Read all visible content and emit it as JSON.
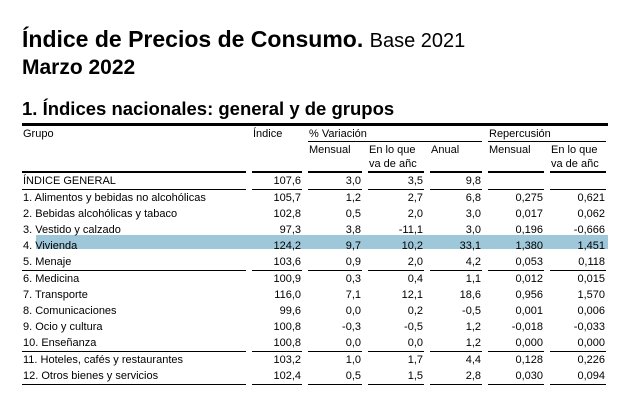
{
  "title": "Índice de Precios de Consumo.",
  "base": "Base 2021",
  "period": "Marzo 2022",
  "section": "1. Índices nacionales: general y de grupos",
  "headers": {
    "grupo": "Grupo",
    "indice": "Índice",
    "variacion": "% Variación",
    "repercusion": "Repercusión",
    "mensual": "Mensual",
    "en_lo_que": "En lo que",
    "va_de": "va de añc",
    "anual": "Anual",
    "rep_mensual": "Mensual",
    "rep_en_lo_que": "En lo que",
    "rep_va_de": "va de añc"
  },
  "highlight_color": "#9ec8da",
  "rows": [
    [
      "ÍNDICE GENERAL",
      "107,6",
      "3,0",
      "3,5",
      "9,8",
      "",
      ""
    ],
    [
      "1. Alimentos y bebidas no alcohólicas",
      "105,7",
      "1,2",
      "2,7",
      "6,8",
      "0,275",
      "0,621"
    ],
    [
      "2. Bebidas alcohólicas y tabaco",
      "102,8",
      "0,5",
      "2,0",
      "3,0",
      "0,017",
      "0,062"
    ],
    [
      "3. Vestido y calzado",
      "97,3",
      "3,8",
      "-11,1",
      "3,0",
      "0,196",
      "-0,666"
    ],
    [
      "4. Vivienda",
      "124,2",
      "9,7",
      "10,2",
      "33,1",
      "1,380",
      "1,451"
    ],
    [
      "5. Menaje",
      "103,6",
      "0,9",
      "2,0",
      "4,2",
      "0,053",
      "0,118"
    ],
    [
      "6. Medicina",
      "100,9",
      "0,3",
      "0,4",
      "1,1",
      "0,012",
      "0,015"
    ],
    [
      "7. Transporte",
      "116,0",
      "7,1",
      "12,1",
      "18,6",
      "0,956",
      "1,570"
    ],
    [
      "8. Comunicaciones",
      "99,6",
      "0,0",
      "0,2",
      "-0,5",
      "0,001",
      "0,006"
    ],
    [
      "9. Ocio y cultura",
      "100,8",
      "-0,3",
      "-0,5",
      "1,2",
      "-0,018",
      "-0,033"
    ],
    [
      "10. Enseñanza",
      "100,8",
      "0,0",
      "0,0",
      "1,2",
      "0,000",
      "0,000"
    ],
    [
      "11. Hoteles, cafés y restaurantes",
      "103,2",
      "1,0",
      "1,7",
      "4,4",
      "0,128",
      "0,226"
    ],
    [
      "12. Otros bienes y servicios",
      "102,4",
      "0,5",
      "1,5",
      "2,8",
      "0,030",
      "0,094"
    ]
  ]
}
